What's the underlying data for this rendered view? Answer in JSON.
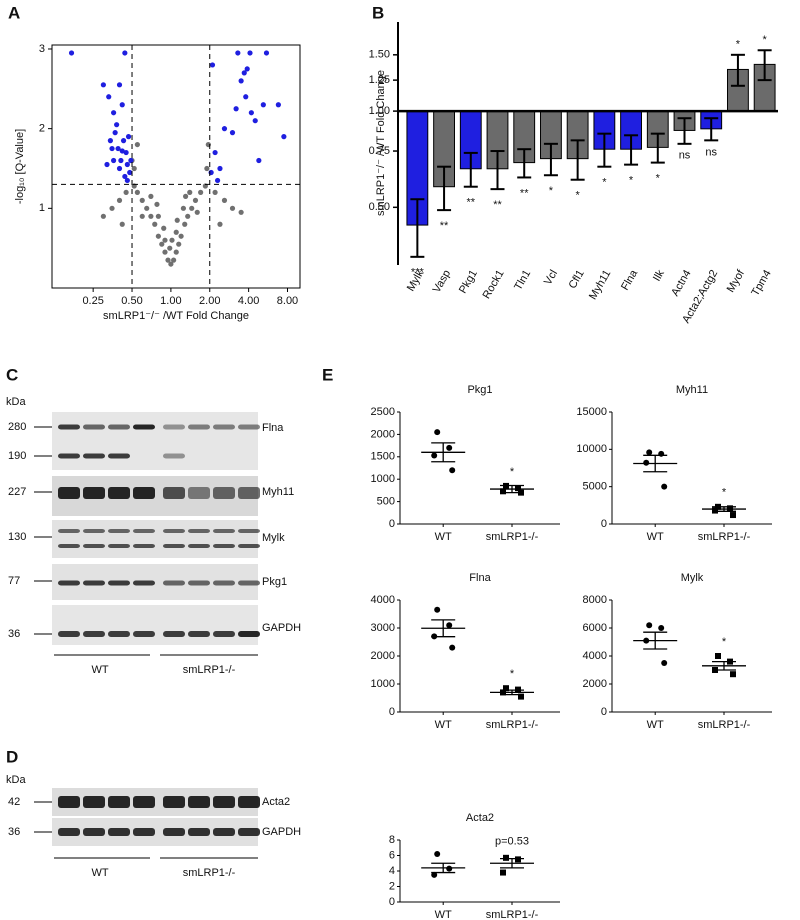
{
  "panel_labels": [
    "A",
    "B",
    "C",
    "D",
    "E"
  ],
  "chart_data": [
    {
      "type": "scatter",
      "x_label": "smLRP1⁻/⁻ /WT Fold Change",
      "y_label": "-log₁₀ [Q-Value]",
      "log_x": true,
      "xlim": [
        0.12,
        10
      ],
      "ylim": [
        0,
        3.05
      ],
      "xticks": [
        0.25,
        {
          "value": 0.5,
          "label": "0.50"
        },
        {
          "value": 1,
          "label": "1.00"
        },
        {
          "value": 2,
          "label": "2.00"
        },
        {
          "value": 4,
          "label": "4.00"
        },
        {
          "value": 8,
          "label": "8.00"
        }
      ],
      "yticks": [
        1,
        2,
        3
      ],
      "vlines": [
        0.5,
        2
      ],
      "hlines": [
        1.3
      ],
      "series": [
        {
          "color": "#707070",
          "x": [
            1.0,
            0.95,
            1.05,
            0.9,
            1.1,
            0.85,
            1.15,
            0.8,
            1.2,
            0.75,
            1.28,
            0.7,
            1.35,
            0.65,
            1.45,
            0.6,
            1.55,
            0.55,
            1.7,
            0.52,
            1.85,
            0.5,
            0.55,
            0.52,
            1.9,
            1.95,
            0.9,
            1.1,
            0.8,
            1.25,
            0.7,
            1.4,
            0.6,
            1.6,
            0.45,
            0.4,
            0.35,
            2.2,
            2.6,
            3.0,
            0.3,
            3.5,
            0.42,
            2.4,
            0.98,
            1.02,
            0.88,
            1.12,
            0.78,
            1.3
          ],
          "values": [
            0.3,
            0.35,
            0.35,
            0.45,
            0.45,
            0.55,
            0.55,
            0.65,
            0.65,
            0.8,
            0.8,
            0.9,
            0.9,
            1.0,
            1.0,
            1.1,
            1.1,
            1.2,
            1.2,
            1.28,
            1.28,
            1.6,
            1.8,
            1.5,
            1.5,
            1.8,
            0.6,
            0.7,
            0.9,
            1.0,
            1.15,
            1.2,
            0.9,
            0.95,
            1.2,
            1.1,
            1.0,
            1.2,
            1.1,
            1.0,
            0.9,
            0.95,
            0.8,
            0.8,
            0.5,
            0.6,
            0.75,
            0.85,
            1.05,
            1.15
          ]
        },
        {
          "color": "#1f1fe0",
          "x": [
            0.17,
            0.3,
            0.33,
            0.36,
            0.38,
            0.4,
            0.42,
            0.44,
            0.34,
            0.37,
            0.39,
            0.41,
            0.43,
            0.45,
            0.46,
            0.47,
            0.48,
            0.44,
            0.4,
            0.36,
            0.42,
            0.46,
            0.49,
            0.32,
            0.35,
            2.1,
            2.6,
            3.3,
            3.5,
            3.7,
            3.9,
            4.1,
            3.8,
            4.2,
            4.5,
            3.2,
            5.5,
            5.2,
            6.8,
            7.5,
            2.2,
            2.4,
            2.05,
            3.0,
            4.8,
            2.3
          ],
          "values": [
            2.95,
            2.55,
            2.4,
            2.2,
            2.05,
            2.55,
            2.3,
            2.95,
            1.85,
            1.95,
            1.75,
            1.6,
            1.85,
            1.7,
            1.55,
            1.9,
            1.45,
            1.4,
            1.5,
            1.6,
            1.72,
            1.35,
            1.6,
            1.55,
            1.75,
            2.8,
            2.0,
            2.95,
            2.6,
            2.7,
            2.75,
            2.95,
            2.4,
            2.2,
            2.1,
            2.25,
            2.95,
            2.3,
            2.3,
            1.9,
            1.7,
            1.5,
            1.45,
            1.95,
            1.6,
            1.35
          ]
        }
      ]
    },
    {
      "type": "bar",
      "y_label": "smLRP1⁻/⁻ /WT Fold Change",
      "log_y": true,
      "baseline": 1,
      "ylim": [
        0.33,
        1.9
      ],
      "yticks": [
        {
          "value": 0.5,
          "label": "0.50"
        },
        {
          "value": 0.75,
          "label": "0.75"
        },
        {
          "value": 1,
          "label": "1.00"
        },
        {
          "value": 1.25,
          "label": "1.25"
        },
        {
          "value": 1.5,
          "label": "1.50"
        }
      ],
      "categories": [
        "Mylk",
        "Vasp",
        "Pkg1",
        "Rock1",
        "Tln1",
        "Vcl",
        "Cfl1",
        "Myh11",
        "Flna",
        "Ilk",
        "Actn4",
        "Acta2;Actg2",
        "Myof",
        "Tpm4"
      ],
      "values": [
        0.44,
        0.58,
        0.66,
        0.66,
        0.69,
        0.71,
        0.71,
        0.76,
        0.76,
        0.77,
        0.87,
        0.88,
        1.35,
        1.4
      ],
      "errors": [
        0.09,
        0.09,
        0.08,
        0.09,
        0.07,
        0.08,
        0.1,
        0.09,
        0.08,
        0.08,
        0.08,
        0.07,
        0.15,
        0.15
      ],
      "colors": [
        "#1f1fe0",
        "#6b6b6b",
        "#1f1fe0",
        "#6b6b6b",
        "#6b6b6b",
        "#6b6b6b",
        "#6b6b6b",
        "#1f1fe0",
        "#1f1fe0",
        "#6b6b6b",
        "#6b6b6b",
        "#1f1fe0",
        "#6b6b6b",
        "#6b6b6b"
      ],
      "significance": [
        "***",
        "**",
        "**",
        "**",
        "**",
        "*",
        "*",
        "*",
        "*",
        "*",
        "ns",
        "ns",
        "*",
        "*"
      ]
    },
    {
      "type": "dot",
      "title": "Pkg1",
      "categories": [
        "WT",
        "smLRP1-/-"
      ],
      "markers": [
        "circle",
        "square"
      ],
      "values": [
        [
          2050,
          1700,
          1530,
          1200
        ],
        [
          850,
          800,
          730,
          700
        ]
      ],
      "means": [
        1600,
        780
      ],
      "sems": [
        210,
        80
      ],
      "ylim": [
        0,
        2500
      ],
      "yticks": [
        0,
        500,
        1000,
        1500,
        2000,
        2500
      ],
      "annotation": "*"
    },
    {
      "type": "dot",
      "title": "Myh11",
      "categories": [
        "WT",
        "smLRP1-/-"
      ],
      "markers": [
        "circle",
        "square"
      ],
      "values": [
        [
          9600,
          9400,
          8200,
          5000
        ],
        [
          2300,
          2100,
          1800,
          1200
        ]
      ],
      "means": [
        8100,
        2000
      ],
      "sems": [
        1100,
        300
      ],
      "ylim": [
        0,
        15000
      ],
      "yticks": [
        0,
        5000,
        10000,
        15000
      ],
      "annotation": "*"
    },
    {
      "type": "dot",
      "title": "Flna",
      "categories": [
        "WT",
        "smLRP1-/-"
      ],
      "markers": [
        "circle",
        "square"
      ],
      "values": [
        [
          3650,
          3100,
          2700,
          2300
        ],
        [
          850,
          800,
          700,
          550
        ]
      ],
      "means": [
        2990,
        700
      ],
      "sems": [
        300,
        80
      ],
      "ylim": [
        0,
        4000
      ],
      "yticks": [
        0,
        1000,
        2000,
        3000,
        4000
      ],
      "annotation": "*"
    },
    {
      "type": "dot",
      "title": "Mylk",
      "categories": [
        "WT",
        "smLRP1-/-"
      ],
      "markers": [
        "circle",
        "square"
      ],
      "values": [
        [
          6200,
          6000,
          5100,
          3500
        ],
        [
          4000,
          3600,
          3000,
          2700
        ]
      ],
      "means": [
        5100,
        3300
      ],
      "sems": [
        600,
        300
      ],
      "ylim": [
        0,
        8000
      ],
      "yticks": [
        0,
        2000,
        4000,
        6000,
        8000
      ],
      "annotation": "*"
    },
    {
      "type": "dot",
      "title": "Acta2",
      "categories": [
        "WT",
        "smLRP1-/-"
      ],
      "markers": [
        "circle",
        "square"
      ],
      "values": [
        [
          6.2,
          4.3,
          3.5
        ],
        [
          5.7,
          5.5,
          3.8
        ]
      ],
      "means": [
        4.4,
        5.0
      ],
      "sems": [
        0.6,
        0.6
      ],
      "ylim": [
        0,
        8
      ],
      "yticks": [
        0,
        2,
        4,
        6,
        8
      ],
      "annotation": "p=0.53"
    }
  ],
  "blots": {
    "C": {
      "unit": "kDa",
      "markers": [
        "280",
        "190",
        "227",
        "130",
        "77",
        "36"
      ],
      "proteins": [
        "Flna",
        "Myh11",
        "Mylk",
        "Pkg1",
        "GAPDH"
      ],
      "groups": [
        "WT",
        "smLRP1-/-"
      ]
    },
    "D": {
      "unit": "kDa",
      "markers": [
        "42",
        "36"
      ],
      "proteins": [
        "Acta2",
        "GAPDH"
      ],
      "groups": [
        "WT",
        "smLRP1-/-"
      ]
    }
  }
}
